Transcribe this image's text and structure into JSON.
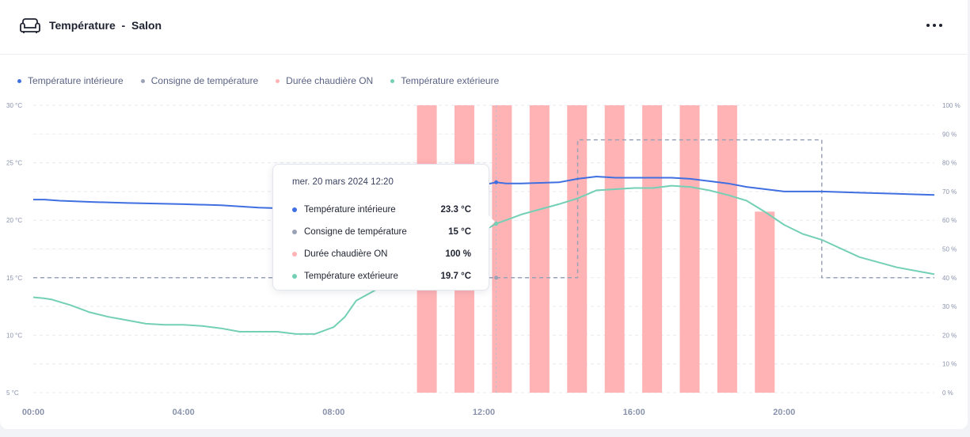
{
  "header": {
    "title": "Température  -  Salon",
    "icon": "sofa-icon",
    "menu_icon": "more-horizontal-icon"
  },
  "colors": {
    "interior": "#3f6fe0",
    "setpoint": "#9aa2b8",
    "boiler": "#ffb3b5",
    "exterior": "#74d0b5",
    "axis_text": "#8a93ad",
    "grid": "#e7e9ef"
  },
  "legend": [
    {
      "label": "Température intérieure",
      "color": "#3f6fe0"
    },
    {
      "label": "Consigne de température",
      "color": "#9aa2b8"
    },
    {
      "label": "Durée chaudière ON",
      "color": "#ffb3b5"
    },
    {
      "label": "Température extérieure",
      "color": "#74d0b5"
    }
  ],
  "tooltip": {
    "date": "mer. 20 mars 2024 12:20",
    "rows": [
      {
        "label": "Température intérieure",
        "value": "23.3 °C",
        "color": "#3f6fe0"
      },
      {
        "label": "Consigne de température",
        "value": "15 °C",
        "color": "#9aa2b8"
      },
      {
        "label": "Durée chaudière ON",
        "value": "100 %",
        "color": "#ffb3b5"
      },
      {
        "label": "Température extérieure",
        "value": "19.7 °C",
        "color": "#74d0b5"
      }
    ]
  },
  "chart_data": {
    "type": "line",
    "x_unit": "hour",
    "x_range": [
      0,
      24
    ],
    "x_ticks": [
      0,
      4,
      8,
      12,
      16,
      20
    ],
    "x_tick_labels": [
      "00:00",
      "04:00",
      "08:00",
      "12:00",
      "16:00",
      "20:00"
    ],
    "y_left": {
      "range": [
        5,
        30
      ],
      "ticks": [
        5,
        10,
        15,
        20,
        25,
        30
      ],
      "tick_labels": [
        "5 °C",
        "10 °C",
        "15 °C",
        "20 °C",
        "25 °C",
        "30 °C"
      ]
    },
    "y_right": {
      "range": [
        0,
        100
      ],
      "ticks": [
        0,
        10,
        20,
        30,
        40,
        50,
        60,
        70,
        80,
        90,
        100
      ],
      "tick_labels": [
        "0 %",
        "10 %",
        "20 %",
        "30 %",
        "40 %",
        "50 %",
        "60 %",
        "70 %",
        "80 %",
        "90 %",
        "100 %"
      ]
    },
    "grid": true,
    "legend_position": "top-left",
    "hover_x": 12.33,
    "series": [
      {
        "name": "Température intérieure",
        "type": "line",
        "axis": "left",
        "x": [
          0,
          0.3,
          0.7,
          1.5,
          2.5,
          4,
          5,
          6,
          7,
          8,
          8.6,
          12.33,
          12.6,
          13,
          14,
          14.5,
          15,
          15.5,
          16,
          17,
          17.5,
          18,
          18.5,
          19,
          19.5,
          20,
          21,
          22,
          23,
          24
        ],
        "y": [
          21.8,
          21.8,
          21.7,
          21.6,
          21.5,
          21.4,
          21.3,
          21.1,
          21.0,
          21.0,
          20.9,
          23.3,
          23.2,
          23.2,
          23.3,
          23.6,
          23.8,
          23.7,
          23.7,
          23.7,
          23.6,
          23.4,
          23.2,
          22.9,
          22.7,
          22.5,
          22.5,
          22.4,
          22.3,
          22.2
        ]
      },
      {
        "name": "Consigne de température",
        "type": "step",
        "axis": "left",
        "x": [
          0,
          12.33,
          14.5,
          14.5,
          21,
          21,
          24
        ],
        "y": [
          15,
          15,
          15,
          27,
          27,
          15,
          15
        ]
      },
      {
        "name": "Durée chaudière ON",
        "type": "bar",
        "axis": "right",
        "x": [
          11,
          12,
          13,
          14,
          15,
          16,
          17,
          18,
          19,
          20
        ],
        "y": [
          100,
          100,
          100,
          100,
          100,
          100,
          100,
          100,
          100,
          63
        ]
      },
      {
        "name": "Température extérieure",
        "type": "line",
        "axis": "left",
        "x": [
          0,
          0.3,
          0.5,
          1,
          1.5,
          2,
          2.5,
          3,
          3.5,
          4,
          4.5,
          5,
          5.5,
          6,
          6.5,
          7,
          7.5,
          8,
          8.3,
          8.6,
          12.33,
          13,
          14,
          14.5,
          15,
          15.5,
          16,
          16.5,
          17,
          17.5,
          18,
          18.5,
          19,
          19.5,
          20,
          20.5,
          21,
          22,
          23,
          24
        ],
        "y": [
          13.3,
          13.2,
          13.1,
          12.6,
          12.0,
          11.6,
          11.3,
          11.0,
          10.9,
          10.9,
          10.8,
          10.6,
          10.3,
          10.3,
          10.3,
          10.1,
          10.1,
          10.7,
          11.6,
          13.0,
          19.7,
          20.5,
          21.4,
          21.9,
          22.6,
          22.7,
          22.8,
          22.8,
          23.0,
          22.9,
          22.6,
          22.2,
          21.7,
          20.7,
          19.6,
          18.8,
          18.3,
          16.8,
          15.9,
          15.3
        ]
      }
    ]
  }
}
